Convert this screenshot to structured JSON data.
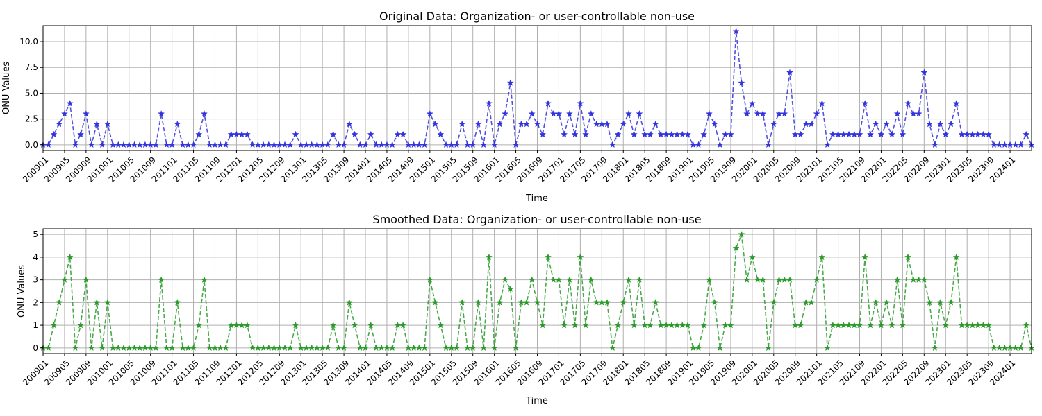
{
  "chart_data": [
    {
      "type": "line",
      "title": "Original Data: Organization- or user-controllable non-use",
      "xlabel": "Time",
      "ylabel": "ONU Values",
      "ylim": [
        -0.55,
        11.55
      ],
      "yticks": [
        "0.0",
        "2.5",
        "5.0",
        "7.5",
        "10.0"
      ],
      "ytick_values": [
        0,
        2.5,
        5,
        7.5,
        10
      ],
      "grid": true,
      "color": "#3333dd",
      "marker": "star",
      "line_style": "dashed",
      "xticks": [
        "200901",
        "200905",
        "200909",
        "201001",
        "201005",
        "201009",
        "201101",
        "201105",
        "201109",
        "201201",
        "201205",
        "201209",
        "201301",
        "201305",
        "201309",
        "201401",
        "201405",
        "201409",
        "201501",
        "201505",
        "201509",
        "201601",
        "201605",
        "201609",
        "201701",
        "201705",
        "201709",
        "201801",
        "201805",
        "201809",
        "201901",
        "201905",
        "201909",
        "202001",
        "202005",
        "202009",
        "202101",
        "202105",
        "202109",
        "202201",
        "202205",
        "202209",
        "202301",
        "202305",
        "202309",
        "202401"
      ],
      "series": [
        {
          "values": [
            0,
            0,
            1,
            2,
            3,
            4,
            0,
            1,
            3,
            0,
            2,
            0,
            2,
            0,
            0,
            0,
            0,
            0,
            0,
            0,
            0,
            0,
            3,
            0,
            0,
            2,
            0,
            0,
            0,
            1,
            3,
            0,
            0,
            0,
            0,
            1,
            1,
            1,
            1,
            0,
            0,
            0,
            0,
            0,
            0,
            0,
            0,
            1,
            0,
            0,
            0,
            0,
            0,
            0,
            1,
            0,
            0,
            2,
            1,
            0,
            0,
            1,
            0,
            0,
            0,
            0,
            1,
            1,
            0,
            0,
            0,
            0,
            3,
            2,
            1,
            0,
            0,
            0,
            2,
            0,
            0,
            2,
            0,
            4,
            0,
            2,
            3,
            6,
            0,
            2,
            2,
            3,
            2,
            1,
            4,
            3,
            3,
            1,
            3,
            1,
            4,
            1,
            3,
            2,
            2,
            2,
            0,
            1,
            2,
            3,
            1,
            3,
            1,
            1,
            2,
            1,
            1,
            1,
            1,
            1,
            1,
            0,
            0,
            1,
            3,
            2,
            0,
            1,
            1,
            11,
            6,
            3,
            4,
            3,
            3,
            0,
            2,
            3,
            3,
            7,
            1,
            1,
            2,
            2,
            3,
            4,
            0,
            1,
            1,
            1,
            1,
            1,
            1,
            4,
            1,
            2,
            1,
            2,
            1,
            3,
            1,
            4,
            3,
            3,
            7,
            2,
            0,
            2,
            1,
            2,
            4,
            1,
            1,
            1,
            1,
            1,
            1,
            0,
            0,
            0,
            0,
            0,
            0,
            1,
            0
          ]
        }
      ]
    },
    {
      "type": "line",
      "title": "Smoothed Data: Organization- or user-controllable non-use",
      "xlabel": "Time",
      "ylabel": "ONU Values",
      "ylim": [
        -0.25,
        5.25
      ],
      "yticks": [
        "0",
        "1",
        "2",
        "3",
        "4",
        "5"
      ],
      "ytick_values": [
        0,
        1,
        2,
        3,
        4,
        5
      ],
      "grid": true,
      "color": "#2a9a2a",
      "marker": "star",
      "line_style": "dashed",
      "xticks": [
        "200901",
        "200905",
        "200909",
        "201001",
        "201005",
        "201009",
        "201101",
        "201105",
        "201109",
        "201201",
        "201205",
        "201209",
        "201301",
        "201305",
        "201309",
        "201401",
        "201405",
        "201409",
        "201501",
        "201505",
        "201509",
        "201601",
        "201605",
        "201609",
        "201701",
        "201705",
        "201709",
        "201801",
        "201805",
        "201809",
        "201901",
        "201905",
        "201909",
        "202001",
        "202005",
        "202009",
        "202101",
        "202105",
        "202109",
        "202201",
        "202205",
        "202209",
        "202301",
        "202305",
        "202309",
        "202401"
      ],
      "series": [
        {
          "values": [
            0,
            0,
            1,
            2,
            3,
            4,
            0,
            1,
            3,
            0,
            2,
            0,
            2,
            0,
            0,
            0,
            0,
            0,
            0,
            0,
            0,
            0,
            3,
            0,
            0,
            2,
            0,
            0,
            0,
            1,
            3,
            0,
            0,
            0,
            0,
            1,
            1,
            1,
            1,
            0,
            0,
            0,
            0,
            0,
            0,
            0,
            0,
            1,
            0,
            0,
            0,
            0,
            0,
            0,
            1,
            0,
            0,
            2,
            1,
            0,
            0,
            1,
            0,
            0,
            0,
            0,
            1,
            1,
            0,
            0,
            0,
            0,
            3,
            2,
            1,
            0,
            0,
            0,
            2,
            0,
            0,
            2,
            0,
            4,
            0,
            2,
            3,
            2.6,
            0,
            2,
            2,
            3,
            2,
            1,
            4,
            3,
            3,
            1,
            3,
            1,
            4,
            1,
            3,
            2,
            2,
            2,
            0,
            1,
            2,
            3,
            1,
            3,
            1,
            1,
            2,
            1,
            1,
            1,
            1,
            1,
            1,
            0,
            0,
            1,
            3,
            2,
            0,
            1,
            1,
            4.4,
            5,
            3,
            4,
            3,
            3,
            0,
            2,
            3,
            3,
            3,
            1,
            1,
            2,
            2,
            3,
            4,
            0,
            1,
            1,
            1,
            1,
            1,
            1,
            4,
            1,
            2,
            1,
            2,
            1,
            3,
            1,
            4,
            3,
            3,
            3,
            2,
            0,
            2,
            1,
            2,
            4,
            1,
            1,
            1,
            1,
            1,
            1,
            0,
            0,
            0,
            0,
            0,
            0,
            1,
            0
          ]
        }
      ]
    }
  ]
}
